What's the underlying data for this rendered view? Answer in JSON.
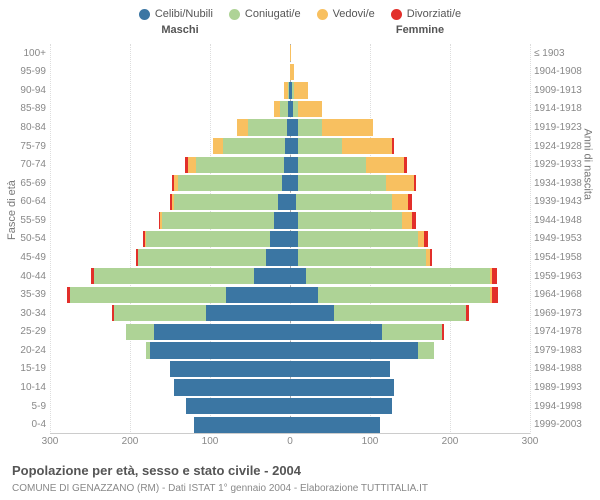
{
  "title": "Popolazione per età, sesso e stato civile - 2004",
  "subtitle": "COMUNE DI GENAZZANO (RM) - Dati ISTAT 1° gennaio 2004 - Elaborazione TUTTITALIA.IT",
  "header_male": "Maschi",
  "header_female": "Femmine",
  "axis_left_label": "Fasce di età",
  "axis_right_label": "Anni di nascita",
  "legend": [
    {
      "label": "Celibi/Nubili",
      "color": "#3b76a3"
    },
    {
      "label": "Coniugati/e",
      "color": "#aed396"
    },
    {
      "label": "Vedovi/e",
      "color": "#f8c060"
    },
    {
      "label": "Divorziati/e",
      "color": "#e22f2a"
    }
  ],
  "colors": {
    "single": "#3b76a3",
    "married": "#aed396",
    "widowed": "#f8c060",
    "divorced": "#e22f2a",
    "grid": "#dddddd",
    "axis": "#aaaaaa",
    "background": "#ffffff"
  },
  "xmax": 300,
  "xticks": [
    300,
    200,
    100,
    0,
    100,
    200,
    300
  ],
  "rows": [
    {
      "age": "100+",
      "birth": "≤ 1903",
      "m": {
        "single": 0,
        "married": 0,
        "widowed": 0,
        "divorced": 0
      },
      "f": {
        "single": 0,
        "married": 0,
        "widowed": 1,
        "divorced": 0
      }
    },
    {
      "age": "95-99",
      "birth": "1904-1908",
      "m": {
        "single": 0,
        "married": 0,
        "widowed": 0,
        "divorced": 0
      },
      "f": {
        "single": 0,
        "married": 0,
        "widowed": 5,
        "divorced": 0
      }
    },
    {
      "age": "90-94",
      "birth": "1909-1913",
      "m": {
        "single": 1,
        "married": 2,
        "widowed": 4,
        "divorced": 0
      },
      "f": {
        "single": 3,
        "married": 2,
        "widowed": 18,
        "divorced": 0
      }
    },
    {
      "age": "85-89",
      "birth": "1914-1918",
      "m": {
        "single": 2,
        "married": 10,
        "widowed": 8,
        "divorced": 0
      },
      "f": {
        "single": 4,
        "married": 6,
        "widowed": 30,
        "divorced": 0
      }
    },
    {
      "age": "80-84",
      "birth": "1919-1923",
      "m": {
        "single": 4,
        "married": 48,
        "widowed": 14,
        "divorced": 0
      },
      "f": {
        "single": 10,
        "married": 30,
        "widowed": 64,
        "divorced": 0
      }
    },
    {
      "age": "75-79",
      "birth": "1924-1928",
      "m": {
        "single": 6,
        "married": 78,
        "widowed": 12,
        "divorced": 0
      },
      "f": {
        "single": 10,
        "married": 55,
        "widowed": 62,
        "divorced": 3
      }
    },
    {
      "age": "70-74",
      "birth": "1929-1933",
      "m": {
        "single": 8,
        "married": 110,
        "widowed": 10,
        "divorced": 3
      },
      "f": {
        "single": 10,
        "married": 85,
        "widowed": 48,
        "divorced": 3
      }
    },
    {
      "age": "65-69",
      "birth": "1934-1938",
      "m": {
        "single": 10,
        "married": 130,
        "widowed": 5,
        "divorced": 2
      },
      "f": {
        "single": 10,
        "married": 110,
        "widowed": 35,
        "divorced": 2
      }
    },
    {
      "age": "60-64",
      "birth": "1939-1943",
      "m": {
        "single": 15,
        "married": 130,
        "widowed": 3,
        "divorced": 2
      },
      "f": {
        "single": 8,
        "married": 120,
        "widowed": 20,
        "divorced": 5
      }
    },
    {
      "age": "55-59",
      "birth": "1944-1948",
      "m": {
        "single": 20,
        "married": 140,
        "widowed": 2,
        "divorced": 2
      },
      "f": {
        "single": 10,
        "married": 130,
        "widowed": 12,
        "divorced": 6
      }
    },
    {
      "age": "50-54",
      "birth": "1949-1953",
      "m": {
        "single": 25,
        "married": 155,
        "widowed": 1,
        "divorced": 3
      },
      "f": {
        "single": 10,
        "married": 150,
        "widowed": 8,
        "divorced": 4
      }
    },
    {
      "age": "45-49",
      "birth": "1954-1958",
      "m": {
        "single": 30,
        "married": 160,
        "widowed": 0,
        "divorced": 2
      },
      "f": {
        "single": 10,
        "married": 160,
        "widowed": 5,
        "divorced": 3
      }
    },
    {
      "age": "40-44",
      "birth": "1959-1963",
      "m": {
        "single": 45,
        "married": 200,
        "widowed": 0,
        "divorced": 4
      },
      "f": {
        "single": 20,
        "married": 230,
        "widowed": 3,
        "divorced": 6
      }
    },
    {
      "age": "35-39",
      "birth": "1964-1968",
      "m": {
        "single": 80,
        "married": 195,
        "widowed": 0,
        "divorced": 4
      },
      "f": {
        "single": 35,
        "married": 215,
        "widowed": 2,
        "divorced": 8
      }
    },
    {
      "age": "30-34",
      "birth": "1969-1973",
      "m": {
        "single": 105,
        "married": 115,
        "widowed": 0,
        "divorced": 2
      },
      "f": {
        "single": 55,
        "married": 165,
        "widowed": 0,
        "divorced": 4
      }
    },
    {
      "age": "25-29",
      "birth": "1974-1978",
      "m": {
        "single": 170,
        "married": 35,
        "widowed": 0,
        "divorced": 0
      },
      "f": {
        "single": 115,
        "married": 75,
        "widowed": 0,
        "divorced": 2
      }
    },
    {
      "age": "20-24",
      "birth": "1979-1983",
      "m": {
        "single": 175,
        "married": 5,
        "widowed": 0,
        "divorced": 0
      },
      "f": {
        "single": 160,
        "married": 20,
        "widowed": 0,
        "divorced": 0
      }
    },
    {
      "age": "15-19",
      "birth": "1984-1988",
      "m": {
        "single": 150,
        "married": 0,
        "widowed": 0,
        "divorced": 0
      },
      "f": {
        "single": 125,
        "married": 0,
        "widowed": 0,
        "divorced": 0
      }
    },
    {
      "age": "10-14",
      "birth": "1989-1993",
      "m": {
        "single": 145,
        "married": 0,
        "widowed": 0,
        "divorced": 0
      },
      "f": {
        "single": 130,
        "married": 0,
        "widowed": 0,
        "divorced": 0
      }
    },
    {
      "age": "5-9",
      "birth": "1994-1998",
      "m": {
        "single": 130,
        "married": 0,
        "widowed": 0,
        "divorced": 0
      },
      "f": {
        "single": 128,
        "married": 0,
        "widowed": 0,
        "divorced": 0
      }
    },
    {
      "age": "0-4",
      "birth": "1999-2003",
      "m": {
        "single": 120,
        "married": 0,
        "widowed": 0,
        "divorced": 0
      },
      "f": {
        "single": 112,
        "married": 0,
        "widowed": 0,
        "divorced": 0
      }
    }
  ]
}
